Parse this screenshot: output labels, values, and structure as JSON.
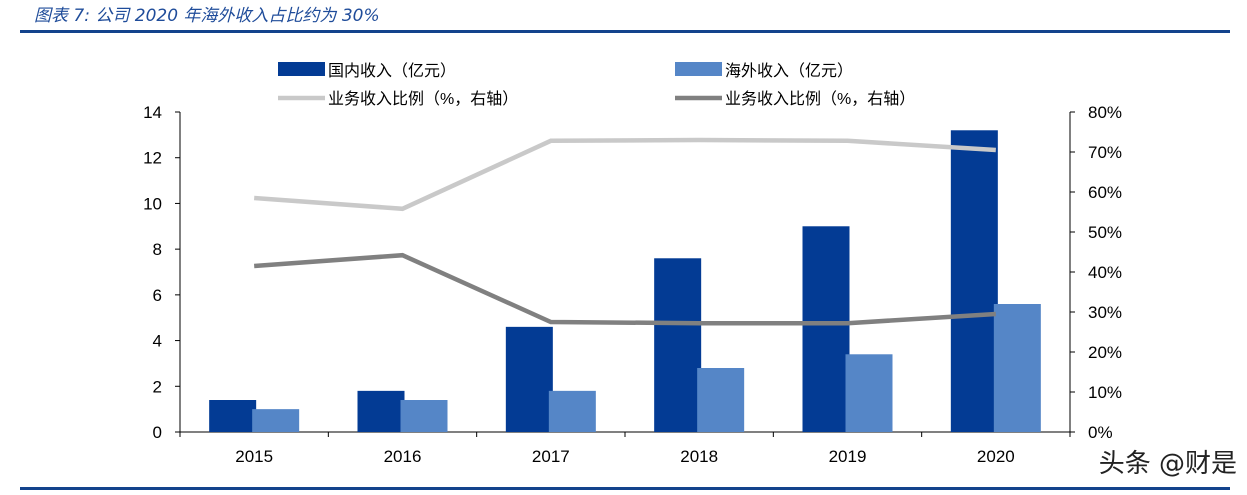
{
  "title": "图表 7:  公司 2020 年海外收入占比约为 30%",
  "watermark": "头条 @财是",
  "colors": {
    "domestic": "#033B94",
    "overseas": "#5586C7",
    "ratio_light": "#C9C9C9",
    "ratio_dark": "#808080",
    "rule": "#13438C"
  },
  "chart_data": {
    "type": "bar+line",
    "categories": [
      "2015",
      "2016",
      "2017",
      "2018",
      "2019",
      "2020"
    ],
    "series": [
      {
        "name": "国内收入（亿元）",
        "type": "bar",
        "axis": "left",
        "values": [
          1.4,
          1.8,
          4.6,
          7.6,
          9.0,
          13.2
        ]
      },
      {
        "name": "海外收入（亿元）",
        "type": "bar",
        "axis": "left",
        "values": [
          1.0,
          1.4,
          1.8,
          2.8,
          3.4,
          5.6
        ]
      },
      {
        "name": "业务收入比例（%，右轴）",
        "type": "line",
        "axis": "right",
        "values": [
          58.5,
          55.8,
          72.8,
          73.0,
          72.8,
          70.5
        ]
      },
      {
        "name": "业务收入比例（%，右轴）",
        "type": "line",
        "axis": "right",
        "values": [
          41.5,
          44.2,
          27.5,
          27.2,
          27.2,
          29.5
        ]
      }
    ],
    "y_left": {
      "range": [
        0,
        14
      ],
      "ticks": [
        "0",
        "2",
        "4",
        "6",
        "8",
        "10",
        "12",
        "14"
      ]
    },
    "y_right": {
      "range": [
        0,
        80
      ],
      "ticks": [
        "0%",
        "10%",
        "20%",
        "30%",
        "40%",
        "50%",
        "60%",
        "70%",
        "80%"
      ]
    },
    "grid": false,
    "legend": "top"
  }
}
